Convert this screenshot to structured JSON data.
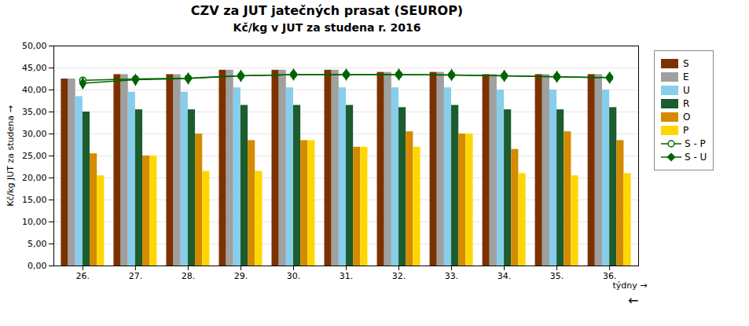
{
  "chart_data": {
    "type": "bar",
    "title": "CZV za JUT jatečných prasat (SEUROP)",
    "subtitle": "Kč/kg v JUT za studena r. 2016",
    "x_label": "týdny",
    "y_label": "Kč/kg JUT za studena",
    "annotations": [
      "←"
    ],
    "categories": [
      "26.",
      "27.",
      "28.",
      "29.",
      "30.",
      "31.",
      "32.",
      "33.",
      "34.",
      "35.",
      "36."
    ],
    "series": [
      {
        "name": "S",
        "type": "bar",
        "color": "#7B3200",
        "values": [
          42.5,
          43.5,
          43.5,
          44.5,
          44.5,
          44.5,
          44.0,
          44.0,
          43.5,
          43.5,
          43.5
        ]
      },
      {
        "name": "E",
        "type": "bar",
        "color": "#A0A0A0",
        "values": [
          42.5,
          43.5,
          43.5,
          44.5,
          44.5,
          44.5,
          44.0,
          44.0,
          43.5,
          43.5,
          43.5
        ]
      },
      {
        "name": "U",
        "type": "bar",
        "color": "#87CEEB",
        "values": [
          38.5,
          39.5,
          39.5,
          40.5,
          40.5,
          40.5,
          40.5,
          40.5,
          40.0,
          40.0,
          40.0
        ]
      },
      {
        "name": "R",
        "type": "bar",
        "color": "#1C5C2E",
        "values": [
          35.0,
          35.5,
          35.5,
          36.5,
          36.5,
          36.5,
          36.0,
          36.5,
          35.5,
          35.5,
          36.0
        ]
      },
      {
        "name": "O",
        "type": "bar",
        "color": "#D48B00",
        "values": [
          25.5,
          25.0,
          30.0,
          28.5,
          28.5,
          27.0,
          30.5,
          30.0,
          26.5,
          30.5,
          28.5
        ]
      },
      {
        "name": "P",
        "type": "bar",
        "color": "#FFD700",
        "values": [
          20.5,
          25.0,
          21.5,
          21.5,
          28.5,
          27.0,
          27.0,
          30.0,
          21.0,
          20.5,
          21.0
        ]
      },
      {
        "name": "S - P",
        "type": "line",
        "color": "#006400",
        "marker": "circle",
        "values": [
          42.2,
          42.5,
          42.7,
          43.2,
          43.5,
          43.5,
          43.5,
          43.4,
          43.2,
          43.0,
          42.8
        ]
      },
      {
        "name": "S - U",
        "type": "line",
        "color": "#006400",
        "marker": "diamond",
        "values": [
          41.5,
          42.3,
          42.6,
          43.2,
          43.5,
          43.5,
          43.5,
          43.4,
          43.2,
          43.0,
          42.8
        ]
      }
    ],
    "ylim": [
      0,
      50
    ],
    "yticks": [
      {
        "value": 0.0,
        "label": "0,00"
      },
      {
        "value": 5.0,
        "label": "5,00"
      },
      {
        "value": 10.0,
        "label": "10,00"
      },
      {
        "value": 15.0,
        "label": "15,00"
      },
      {
        "value": 20.0,
        "label": "20,00"
      },
      {
        "value": 25.0,
        "label": "25,00"
      },
      {
        "value": 30.0,
        "label": "30,00"
      },
      {
        "value": 35.0,
        "label": "35,00"
      },
      {
        "value": 40.0,
        "label": "40,00"
      },
      {
        "value": 45.0,
        "label": "45,00"
      },
      {
        "value": 50.0,
        "label": "50,00"
      }
    ],
    "grid": true,
    "legend": "right"
  }
}
